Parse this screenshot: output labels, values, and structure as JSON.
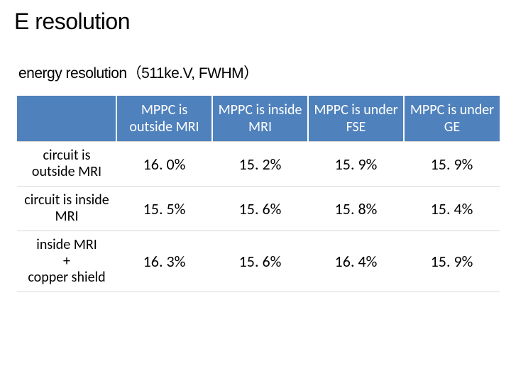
{
  "title": "E resolution",
  "subtitle": "energy resolution（511ke.V, FWHM）",
  "table": {
    "header_bg": "#4f81bd",
    "header_fg": "#ffffff",
    "grid_color": "#d9d9d9",
    "columns": [
      "MPPC is outside MRI",
      "MPPC is inside MRI",
      "MPPC is under FSE",
      "MPPC is under GE"
    ],
    "rows": [
      {
        "label": "circuit is outside MRI",
        "values": [
          "16. 0%",
          "15. 2%",
          "15. 9%",
          "15. 9%"
        ]
      },
      {
        "label": "circuit is inside MRI",
        "values": [
          "15. 5%",
          "15. 6%",
          "15. 8%",
          "15. 4%"
        ]
      },
      {
        "label": "inside MRI\n+\ncopper shield",
        "values": [
          "16. 3%",
          "15. 6%",
          "16. 4%",
          "15. 9%"
        ]
      }
    ]
  }
}
